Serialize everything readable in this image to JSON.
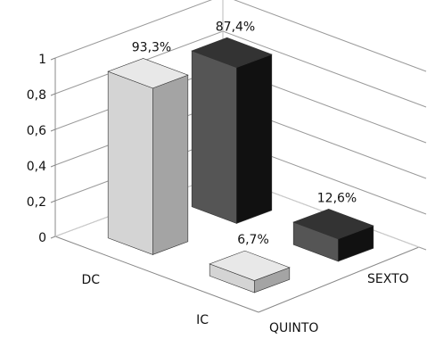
{
  "chart_data": {
    "type": "bar",
    "subtype": "3d-column-grid",
    "title": "",
    "xlabel": "",
    "ylabel": "",
    "x_categories": [
      "DC",
      "IC"
    ],
    "depth_categories": [
      "QUINTO",
      "SEXTO"
    ],
    "ylim": [
      0,
      1
    ],
    "yticks": [
      {
        "value": 0,
        "label": "0"
      },
      {
        "value": 0.2,
        "label": "0,2"
      },
      {
        "value": 0.4,
        "label": "0,4"
      },
      {
        "value": 0.6,
        "label": "0,6"
      },
      {
        "value": 0.8,
        "label": "0,8"
      },
      {
        "value": 1,
        "label": "1"
      }
    ],
    "grid": true,
    "legend": "none",
    "series": [
      {
        "values": [
          0.933,
          0.067
        ],
        "labels": [
          "93,3%",
          "6,7%"
        ],
        "colors": {
          "front": "#d4d4d4",
          "top": "#e8e8e8",
          "side": "#a4a4a4"
        }
      },
      {
        "values": [
          0.874,
          0.126
        ],
        "labels": [
          "87,4%",
          "12,6%"
        ],
        "colors": {
          "front": "#555555",
          "top": "#333333",
          "side": "#111111"
        }
      }
    ]
  }
}
